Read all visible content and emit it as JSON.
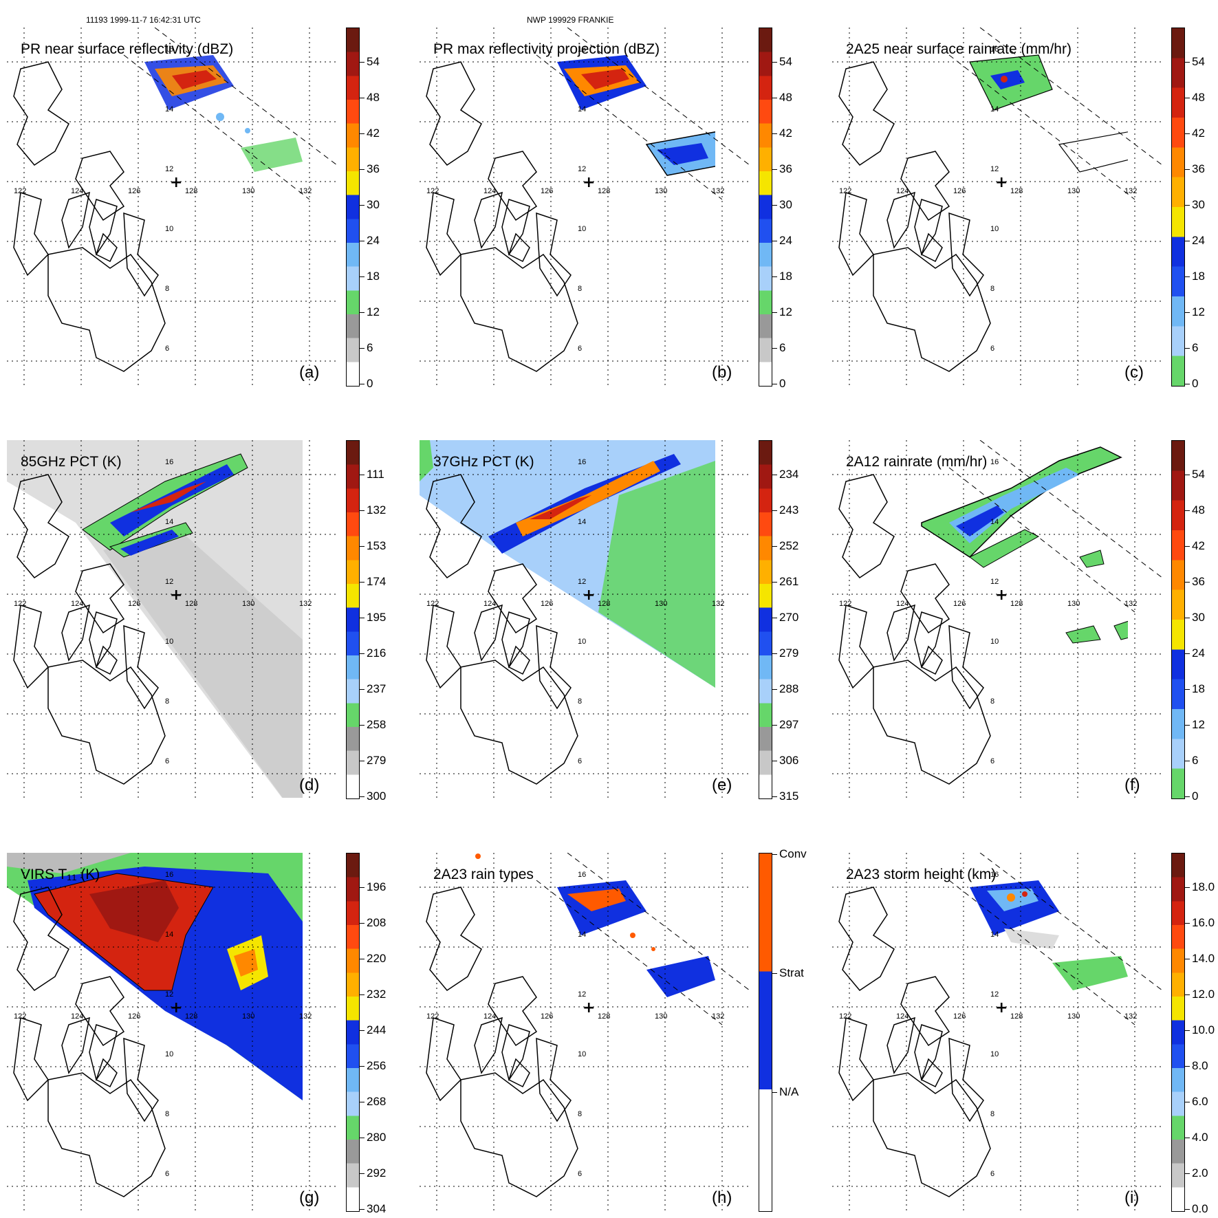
{
  "header": {
    "left": "11193 1999-11-7 16:42:31 UTC",
    "center": "NWP 199929 FRANKIE"
  },
  "lon_labels": [
    "122",
    "124",
    "126",
    "128",
    "130",
    "132"
  ],
  "lat_labels": [
    "16",
    "14",
    "12",
    "10",
    "8",
    "6"
  ],
  "center_marker": "+",
  "colors": {
    "dark_red": "#6b1a10",
    "red": "#d42410",
    "orange": "#ff8800",
    "yellow": "#f5e500",
    "blue": "#1030e0",
    "light_blue": "#70b8f5",
    "green": "#66d66a",
    "grey": "#999999",
    "white": "#ffffff"
  },
  "panels": [
    {
      "id": "a",
      "title": "PR near surface reflectivity (dBZ)",
      "label": "(a)",
      "ticks": [
        "54",
        "48",
        "42",
        "36",
        "30",
        "24",
        "18",
        "12",
        "6",
        "0"
      ],
      "bar": "refl"
    },
    {
      "id": "b",
      "title": "PR max reflectivity projection (dBZ)",
      "label": "(b)",
      "ticks": [
        "54",
        "48",
        "42",
        "36",
        "30",
        "24",
        "18",
        "12",
        "6",
        "0"
      ],
      "bar": "refl"
    },
    {
      "id": "c",
      "title": "2A25 near surface rainrate (mm/hr)",
      "label": "(c)",
      "ticks": [
        "54",
        "48",
        "42",
        "36",
        "30",
        "24",
        "18",
        "12",
        "6",
        "0"
      ],
      "bar": "rain"
    },
    {
      "id": "d",
      "title": "85GHz PCT (K)",
      "label": "(d)",
      "ticks": [
        "111",
        "132",
        "153",
        "174",
        "195",
        "216",
        "237",
        "258",
        "279",
        "300"
      ],
      "bar": "refl"
    },
    {
      "id": "e",
      "title": "37GHz PCT (K)",
      "label": "(e)",
      "ticks": [
        "234",
        "243",
        "252",
        "261",
        "270",
        "279",
        "288",
        "297",
        "306",
        "315"
      ],
      "bar": "refl"
    },
    {
      "id": "f",
      "title": "2A12 rainrate (mm/hr)",
      "label": "(f)",
      "ticks": [
        "54",
        "48",
        "42",
        "36",
        "30",
        "24",
        "18",
        "12",
        "6",
        "0"
      ],
      "bar": "rain"
    },
    {
      "id": "g",
      "title": "VIRS T₁₁ (K)",
      "label": "(g)",
      "ticks": [
        "196",
        "208",
        "220",
        "232",
        "244",
        "256",
        "268",
        "280",
        "292",
        "304"
      ],
      "bar": "refl"
    },
    {
      "id": "h",
      "title": "2A23 rain types",
      "label": "(h)",
      "ticks": [
        "Conv",
        "Strat",
        "N/A"
      ],
      "bar": "types"
    },
    {
      "id": "i",
      "title": "2A23 storm height (km)",
      "label": "(i)",
      "ticks": [
        "18.0",
        "16.0",
        "14.0",
        "12.0",
        "10.0",
        "8.0",
        "6.0",
        "4.0",
        "2.0",
        "0.0"
      ],
      "bar": "height"
    }
  ]
}
